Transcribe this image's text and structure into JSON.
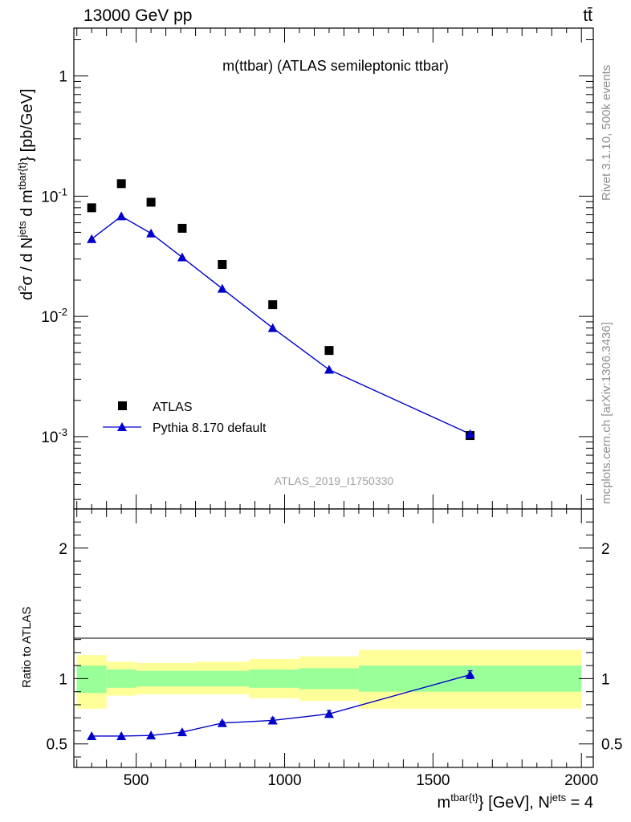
{
  "header": {
    "energy_label": "13000 GeV pp",
    "process_label": "tt̄",
    "plot_title": "m(ttbar) (ATLAS semileptonic ttbar)",
    "analysis_id": "ATLAS_2019_I1750330",
    "rivet_label": "Rivet 3.1.10,  500k events",
    "mcplots_label": "mcplots.cern.ch [arXiv:1306.3436]"
  },
  "chart_data": [
    {
      "type": "scatter",
      "role": "main",
      "ylabel": "d²σ / d N^jets d m^tbar{t} [pb/GeV]",
      "yscale": "log",
      "ylim": [
        0.00025,
        2.5
      ],
      "xlim": [
        290,
        2040
      ],
      "ytick_labels": [
        "10^-3",
        "10^-2",
        "10^-1",
        "1"
      ],
      "legend": {
        "position": "bottom-left",
        "entries": [
          "ATLAS",
          "Pythia 8.170 default"
        ]
      },
      "series": [
        {
          "name": "ATLAS",
          "marker": "square",
          "color": "#000000",
          "x": [
            350,
            450,
            550,
            655,
            790,
            960,
            1150,
            1625
          ],
          "values": [
            0.08,
            0.127,
            0.089,
            0.054,
            0.027,
            0.0125,
            0.0052,
            0.00102
          ]
        },
        {
          "name": "Pythia 8.170 default",
          "marker": "triangle",
          "color": "#0000cc",
          "x": [
            350,
            450,
            550,
            655,
            790,
            960,
            1150,
            1625
          ],
          "values": [
            0.044,
            0.068,
            0.049,
            0.031,
            0.017,
            0.008,
            0.0036,
            0.00105
          ]
        }
      ]
    },
    {
      "type": "line",
      "role": "ratio",
      "ylabel": "Ratio to ATLAS",
      "xlabel": "m^tbar{t}} [GeV], N^jets = 4",
      "xlim": [
        290,
        2040
      ],
      "ylim": [
        0.32,
        2.3
      ],
      "xtick_labels": [
        "500",
        "1000",
        "1500",
        "2000"
      ],
      "ytick_labels": [
        "0.5",
        "1",
        "2"
      ],
      "bins": [
        {
          "lo": 300,
          "hi": 400,
          "inner": [
            0.89,
            1.1
          ],
          "outer": [
            0.77,
            1.18
          ]
        },
        {
          "lo": 400,
          "hi": 500,
          "inner": [
            0.93,
            1.07
          ],
          "outer": [
            0.87,
            1.13
          ]
        },
        {
          "lo": 500,
          "hi": 600,
          "inner": [
            0.94,
            1.06
          ],
          "outer": [
            0.88,
            1.12
          ]
        },
        {
          "lo": 600,
          "hi": 700,
          "inner": [
            0.94,
            1.06
          ],
          "outer": [
            0.88,
            1.12
          ]
        },
        {
          "lo": 700,
          "hi": 880,
          "inner": [
            0.94,
            1.06
          ],
          "outer": [
            0.88,
            1.13
          ]
        },
        {
          "lo": 880,
          "hi": 1050,
          "inner": [
            0.93,
            1.07
          ],
          "outer": [
            0.85,
            1.15
          ]
        },
        {
          "lo": 1050,
          "hi": 1250,
          "inner": [
            0.92,
            1.08
          ],
          "outer": [
            0.83,
            1.17
          ]
        },
        {
          "lo": 1250,
          "hi": 2000,
          "inner": [
            0.9,
            1.1
          ],
          "outer": [
            0.77,
            1.22
          ]
        }
      ],
      "series": [
        {
          "name": "Pythia 8.170 default",
          "color": "#0000cc",
          "x": [
            350,
            450,
            550,
            655,
            790,
            960,
            1150,
            1625
          ],
          "values": [
            0.56,
            0.56,
            0.565,
            0.59,
            0.66,
            0.68,
            0.73,
            1.03
          ],
          "errors": [
            0.005,
            0.005,
            0.005,
            0.008,
            0.012,
            0.02,
            0.025,
            0.03
          ]
        }
      ]
    }
  ]
}
